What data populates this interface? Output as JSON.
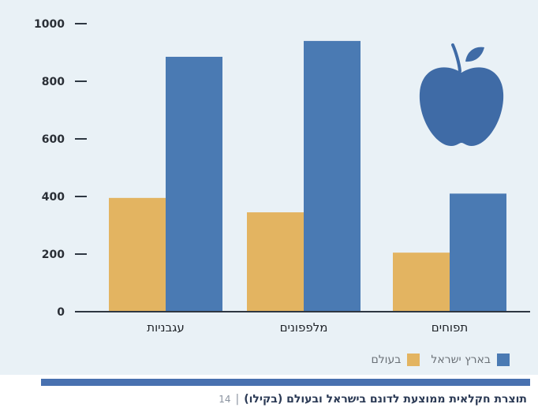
{
  "chart_data": {
    "type": "bar",
    "categories": [
      "תפוחים",
      "מלפפונים",
      "עגבניות"
    ],
    "series": [
      {
        "name": "בארץ ישראל",
        "color": "#4a7ab3",
        "values": [
          410,
          940,
          885
        ]
      },
      {
        "name": "בעולם",
        "color": "#e3b461",
        "values": [
          205,
          345,
          395
        ]
      }
    ],
    "yticks": [
      0,
      200,
      400,
      600,
      800,
      1000
    ],
    "ylim": [
      0,
      1000
    ],
    "grid": false,
    "title": "",
    "xlabel": "",
    "ylabel": "",
    "legend_position": "bottom-right",
    "icon": "apple-icon",
    "icon_color": "#3f6ba6",
    "axis_color": "#2e3742"
  },
  "rule_color": "#4871b0",
  "caption": {
    "page_number": "14",
    "separator": "|",
    "text": "תוצרת חקלאית ממוצעת לדונם בישראל ובעולם (בקילו)"
  }
}
